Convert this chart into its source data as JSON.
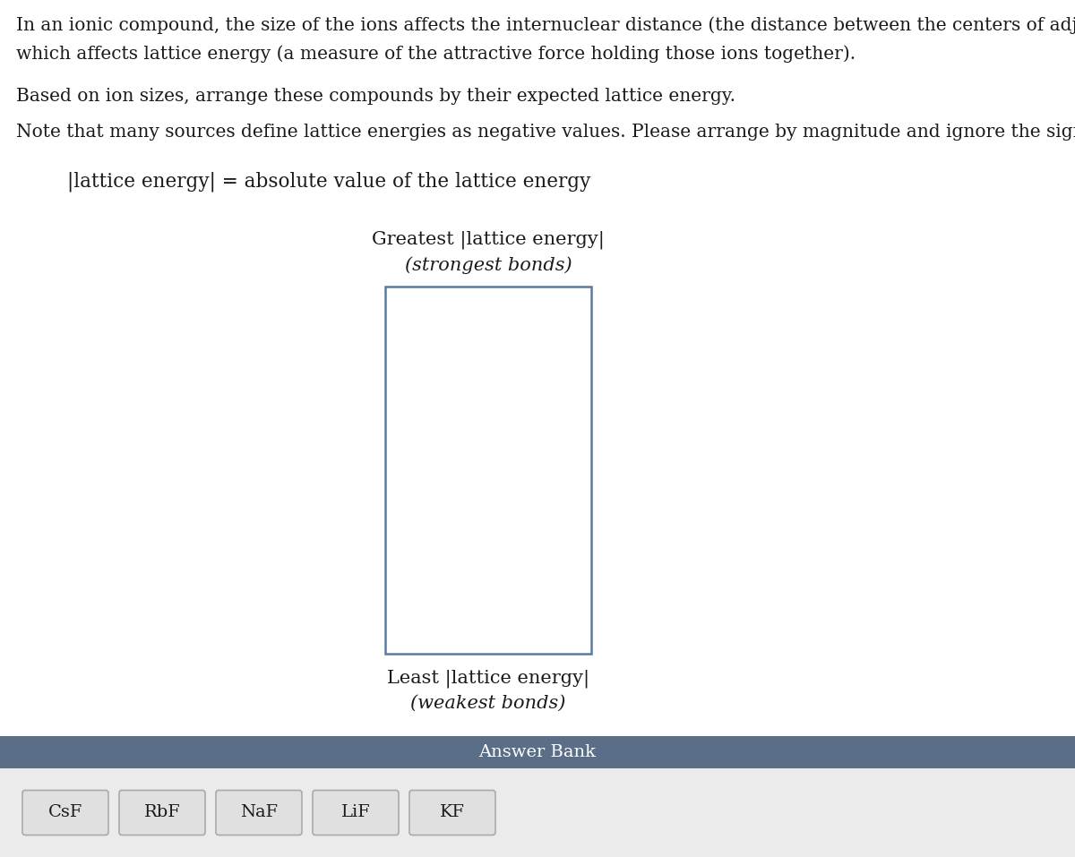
{
  "bg_color": "#ffffff",
  "text_line1": "In an ionic compound, the size of the ions affects the internuclear distance (the distance between the centers of adjacent ions),",
  "text_line2": "which affects lattice energy (a measure of the attractive force holding those ions together).",
  "text_line3": "Based on ion sizes, arrange these compounds by their expected lattice energy.",
  "text_line4": "Note that many sources define lattice energies as negative values. Please arrange by magnitude and ignore the sign.",
  "formula_text": "|lattice energy| = absolute value of the lattice energy",
  "greatest_label_line1": "Greatest |lattice energy|",
  "greatest_label_line2": "(strongest bonds)",
  "least_label_line1": "Least |lattice energy|",
  "least_label_line2": "(weakest bonds)",
  "box_color": "#5a7a9f",
  "answer_bank_label": "Answer Bank",
  "answer_bank_bg": "#5a6e87",
  "answer_bank_items_bg": "#e0e0e0",
  "answer_bank_items": [
    "CsF",
    "RbF",
    "NaF",
    "LiF",
    "KF"
  ],
  "bottom_section_bg": "#ebebeb",
  "font_size_body": 14.5,
  "font_size_formula": 15.5,
  "font_size_label": 15,
  "font_size_answer_bank_header": 14,
  "font_size_items": 14
}
